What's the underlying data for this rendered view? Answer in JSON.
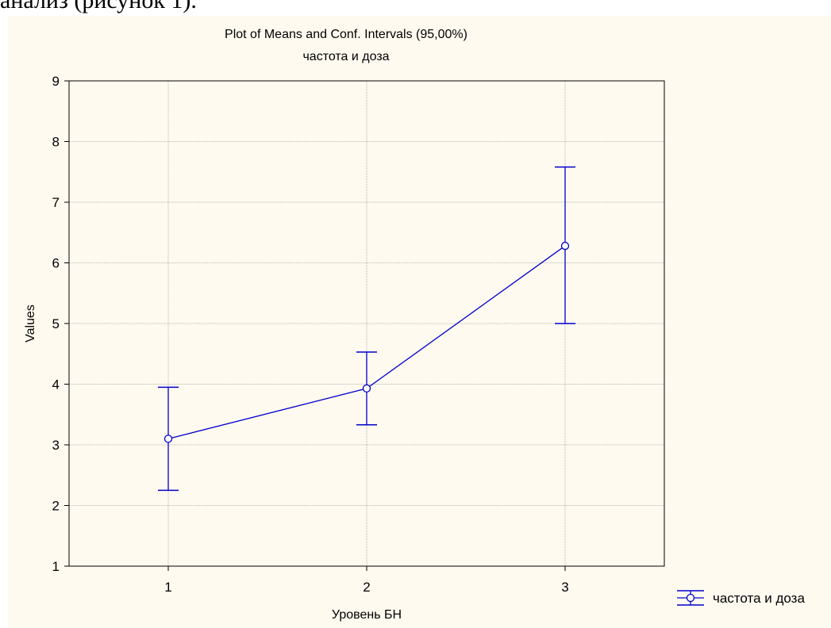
{
  "page": {
    "heading": "анализ (рисунок 1)."
  },
  "chart_data": {
    "type": "line",
    "title": "Plot of Means and Conf. Intervals (95,00%)",
    "subtitle": "частота и доза",
    "xlabel": "Уровень БН",
    "ylabel": "Values",
    "categories": [
      "1",
      "2",
      "3"
    ],
    "ylim": [
      1,
      9
    ],
    "yticks": [
      1,
      2,
      3,
      4,
      5,
      6,
      7,
      8,
      9
    ],
    "grid": true,
    "legend_position": "bottom-right",
    "series": [
      {
        "name": "частота и доза",
        "color": "#0000cc",
        "means": [
          3.1,
          3.93,
          6.28
        ],
        "ci_lower": [
          2.25,
          3.33,
          5.0
        ],
        "ci_upper": [
          3.95,
          4.53,
          7.58
        ]
      }
    ]
  }
}
